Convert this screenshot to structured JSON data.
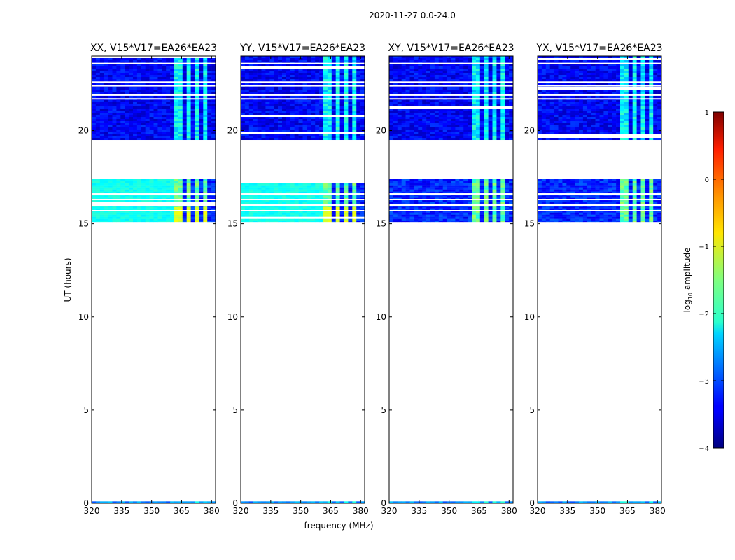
{
  "figure_title": "2020-11-27 0.0-24.0",
  "colors": {
    "axis": "#000000",
    "background": "#ffffff"
  },
  "chart_data": {
    "type": "heatmap",
    "xlabel": "frequency (MHz)",
    "ylabel": "UT (hours)",
    "xlim": [
      320,
      382
    ],
    "ylim": [
      0,
      24
    ],
    "xticks": [
      "320",
      "335",
      "350",
      "365",
      "380"
    ],
    "xtick_values": [
      320,
      335,
      350,
      365,
      380
    ],
    "yticks": [
      "0",
      "5",
      "10",
      "15",
      "20"
    ],
    "ytick_values": [
      0,
      5,
      10,
      15,
      20
    ],
    "panels": [
      {
        "title": "XX, V15*V17=EA26*EA23",
        "pol": "XX"
      },
      {
        "title": "YY, V15*V17=EA26*EA23",
        "pol": "YY"
      },
      {
        "title": "XY, V15*V17=EA26*EA23",
        "pol": "XY"
      },
      {
        "title": "YX, V15*V17=EA26*EA23",
        "pol": "YX"
      }
    ],
    "data_bands_hours": [
      {
        "start": 19.5,
        "end": 24.0,
        "level": -3.3,
        "rfi_level": -2.1
      },
      {
        "start": 15.1,
        "end": 17.4,
        "level": -3.1,
        "rfi_level": -1.6
      },
      {
        "start": 0.0,
        "end": 0.1,
        "level": -2.6,
        "rfi_level": -2.2
      }
    ],
    "rfi_channels_mhz": [
      [
        362,
        366
      ],
      [
        367,
        370
      ],
      [
        371,
        374
      ],
      [
        375,
        378
      ]
    ],
    "colorbar": {
      "label": "log10 amplitude",
      "label_main": "log",
      "label_sub": "10",
      "label_tail": " amplitude",
      "range": [
        -4,
        1
      ],
      "ticks": [
        "−4",
        "−3",
        "−2",
        "−1",
        "0",
        "1"
      ],
      "tick_values": [
        -4,
        -3,
        -2,
        -1,
        0,
        1
      ]
    }
  }
}
